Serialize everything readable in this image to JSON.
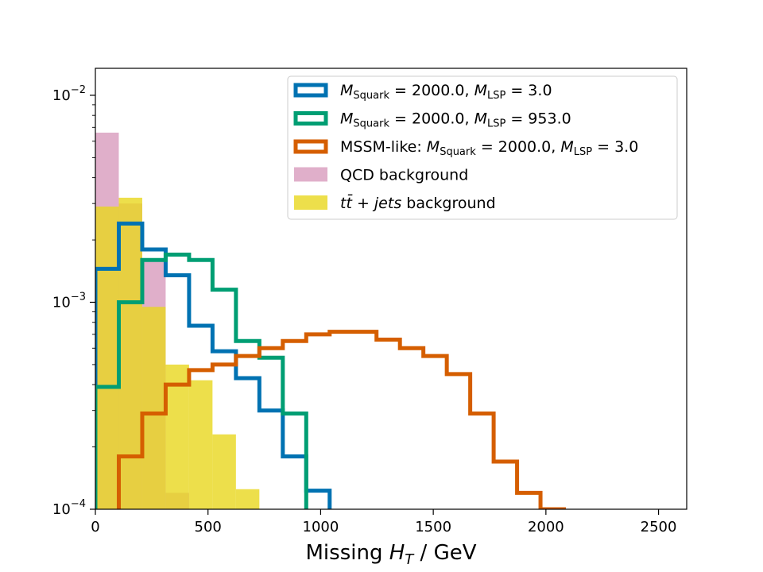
{
  "chart_data": {
    "type": "histogram",
    "xlabel": "Missing H_T / GeV",
    "xlabel_parts": {
      "pre": "Missing ",
      "var": "H",
      "sub": "T",
      "post": " / GeV"
    },
    "ylabel": "",
    "yscale": "log",
    "xlim": [
      0,
      2625
    ],
    "ylim": [
      0.0001,
      0.0135
    ],
    "bin_width": 104,
    "x_ticks": [
      {
        "value": 0,
        "label": "0"
      },
      {
        "value": 500,
        "label": "500"
      },
      {
        "value": 1000,
        "label": "1000"
      },
      {
        "value": 1500,
        "label": "1500"
      },
      {
        "value": 2000,
        "label": "2000"
      },
      {
        "value": 2500,
        "label": "2500"
      }
    ],
    "y_ticks": [
      {
        "value": 0.0001,
        "base": "10",
        "exp": "−4"
      },
      {
        "value": 0.001,
        "base": "10",
        "exp": "−3"
      },
      {
        "value": 0.01,
        "base": "10",
        "exp": "−2"
      }
    ],
    "series": [
      {
        "name": "QCD background",
        "style": "filled",
        "color": "#cc79a7",
        "alpha": 0.6,
        "edges": [
          0,
          104,
          208,
          312,
          416
        ],
        "values": [
          0.0066,
          0.003,
          0.0016,
          0.00012
        ]
      },
      {
        "name": "ttbar + jets background",
        "style": "filled",
        "color": "#e8d71e",
        "alpha": 0.8,
        "edges": [
          0,
          104,
          208,
          312,
          416,
          520,
          624,
          728
        ],
        "values": [
          0.0029,
          0.0032,
          0.00095,
          0.0005,
          0.00042,
          0.00023,
          0.000125
        ]
      },
      {
        "name": "M_Squark = 2000.0, M_LSP = 3.0",
        "style": "step",
        "color": "#0072b2",
        "edges": [
          0,
          104,
          208,
          312,
          416,
          520,
          624,
          728,
          832,
          936,
          1040
        ],
        "values": [
          0.00145,
          0.0024,
          0.0018,
          0.00135,
          0.00077,
          0.00058,
          0.00043,
          0.0003,
          0.00018,
          0.000123
        ]
      },
      {
        "name": "M_Squark = 2000.0, M_LSP = 953.0",
        "style": "step",
        "color": "#009e73",
        "edges": [
          0,
          104,
          208,
          312,
          416,
          520,
          624,
          728,
          832,
          936
        ],
        "values": [
          0.00039,
          0.001,
          0.0016,
          0.0017,
          0.0016,
          0.00115,
          0.00065,
          0.00054,
          0.00029
        ]
      },
      {
        "name": "MSSM-like: M_Squark = 2000.0, M_LSP = 3.0",
        "style": "step",
        "color": "#d55e00",
        "edges": [
          104,
          208,
          312,
          416,
          520,
          624,
          728,
          832,
          936,
          1040,
          1144,
          1248,
          1352,
          1456,
          1560,
          1664,
          1768,
          1872,
          1976,
          2080
        ],
        "values": [
          0.00018,
          0.00029,
          0.0004,
          0.00047,
          0.0005,
          0.00055,
          0.0006,
          0.00065,
          0.0007,
          0.00072,
          0.00072,
          0.00066,
          0.0006,
          0.00055,
          0.00045,
          0.00029,
          0.00017,
          0.00012,
          0.0001
        ]
      }
    ],
    "legend": {
      "placement": "top-right",
      "entries": [
        {
          "series": 2,
          "kind": "step",
          "color": "#0072b2",
          "main": "M",
          "sub": "Squark",
          "mid": " = 2000.0, ",
          "main2": "M",
          "sub2": "LSP",
          "end": " = 3.0",
          "prefix": ""
        },
        {
          "series": 3,
          "kind": "step",
          "color": "#009e73",
          "main": "M",
          "sub": "Squark",
          "mid": " = 2000.0, ",
          "main2": "M",
          "sub2": "LSP",
          "end": " = 953.0",
          "prefix": ""
        },
        {
          "series": 4,
          "kind": "step",
          "color": "#d55e00",
          "main": "M",
          "sub": "Squark",
          "mid": " = 2000.0, ",
          "main2": "M",
          "sub2": "LSP",
          "end": " = 3.0",
          "prefix": "MSSM-like: "
        },
        {
          "series": 0,
          "kind": "fill",
          "color": "#cc79a7",
          "text": "QCD background"
        },
        {
          "series": 1,
          "kind": "fill",
          "color": "#e8d71e",
          "ttbar": true,
          "t1": "t",
          "t2": "t̄",
          "plus": " + ",
          "jets": "jets",
          "rest": " background"
        }
      ]
    }
  }
}
